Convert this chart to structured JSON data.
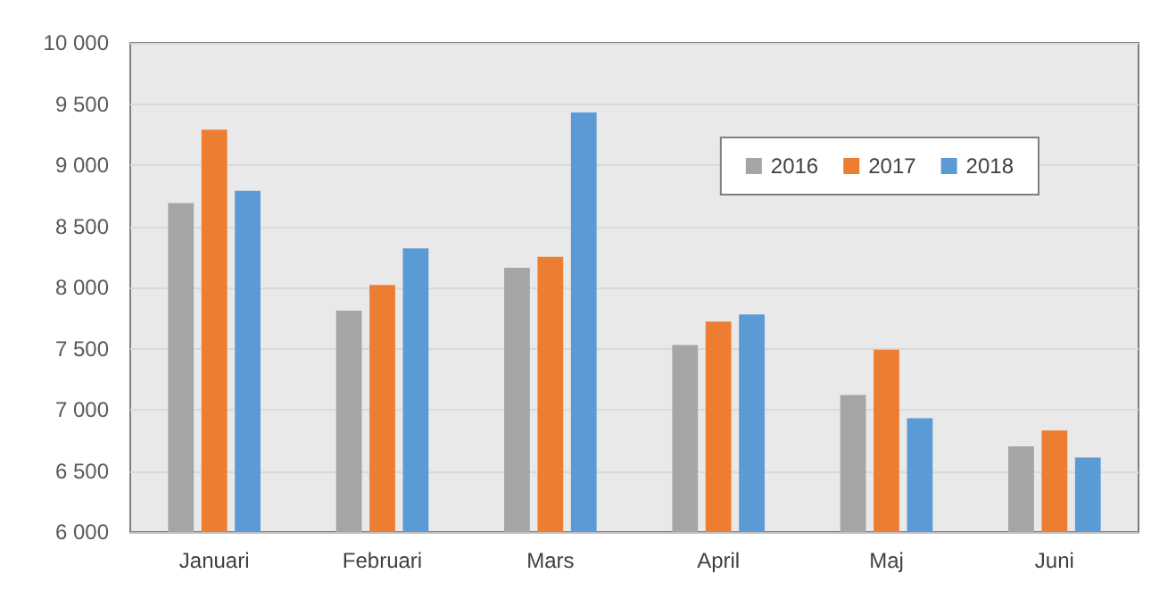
{
  "chart_data": {
    "type": "bar",
    "categories": [
      "Januari",
      "Februari",
      "Mars",
      "April",
      "Maj",
      "Juni"
    ],
    "series": [
      {
        "name": "2016",
        "color": "#a5a5a5",
        "values": [
          8690,
          7810,
          8160,
          7530,
          7120,
          6700
        ]
      },
      {
        "name": "2017",
        "color": "#ed7d31",
        "values": [
          9290,
          8020,
          8250,
          7720,
          7490,
          6830
        ]
      },
      {
        "name": "2018",
        "color": "#5b9bd5",
        "values": [
          8790,
          8320,
          9430,
          7780,
          6930,
          6610
        ]
      }
    ],
    "ylim": [
      6000,
      10000
    ],
    "yticks": [
      {
        "value": 6000,
        "label": "6 000"
      },
      {
        "value": 6500,
        "label": "6 500"
      },
      {
        "value": 7000,
        "label": "7 000"
      },
      {
        "value": 7500,
        "label": "7 500"
      },
      {
        "value": 8000,
        "label": "8 000"
      },
      {
        "value": 8500,
        "label": "8 500"
      },
      {
        "value": 9000,
        "label": "9 000"
      },
      {
        "value": 9500,
        "label": "9 500"
      },
      {
        "value": 10000,
        "label": "10 000"
      }
    ],
    "grid": "y",
    "legend": "top right"
  }
}
